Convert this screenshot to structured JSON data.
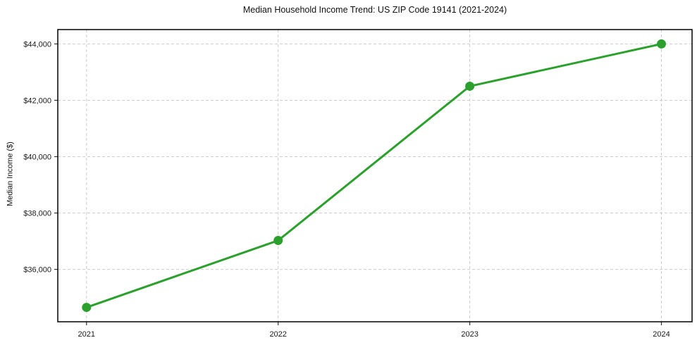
{
  "page": {
    "background": "#ffffff"
  },
  "chart_data": {
    "type": "line",
    "title": "Median Household Income Trend: US ZIP Code 19141 (2021-2024)",
    "xlabel": "",
    "ylabel": "Median Income ($)",
    "x": [
      2021,
      2022,
      2023,
      2024
    ],
    "xtick_labels": [
      "2021",
      "2022",
      "2023",
      "2024"
    ],
    "series": [
      {
        "name": "Median Household Income",
        "values": [
          34650,
          37025,
          42500,
          44000
        ],
        "color": "#2ca02c",
        "marker": "circle",
        "line_width": 3,
        "marker_radius": 6.5
      }
    ],
    "ytick_values": [
      36000,
      38000,
      40000,
      42000,
      44000
    ],
    "ytick_labels": [
      "$36,000",
      "$38,000",
      "$40,000",
      "$42,000",
      "$44,000"
    ],
    "xlim": [
      2020.85,
      2024.16
    ],
    "ylim": [
      34140,
      44510
    ],
    "grid": {
      "visible": true,
      "style": "dashed",
      "color": "#cccccc"
    },
    "legend": "none",
    "spine_color": "#000000",
    "tick_color": "#333333"
  }
}
